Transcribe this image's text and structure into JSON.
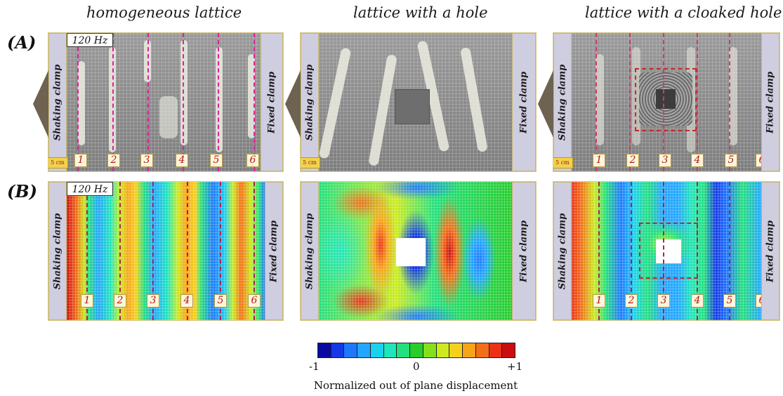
{
  "column_titles": [
    "homogeneous lattice",
    "lattice with a hole",
    "lattice with a cloaked hole"
  ],
  "row_labels": [
    "(A)",
    "(B)"
  ],
  "frequency_label": "120 Hz",
  "scale_label": "5 cm",
  "clamp_labels": {
    "left": "Shaking clamp",
    "right": "Fixed clamp"
  },
  "line_numbers": [
    "1",
    "2",
    "3",
    "4",
    "5",
    "6"
  ],
  "line_colors": {
    "photo_homogeneous": "#e0209c",
    "photo_cloak": "#d23a6c",
    "heatmap": "#b02050"
  },
  "colorbar": {
    "min_label": "-1",
    "mid_label": "0",
    "max_label": "+1",
    "title": "Normalized out of plane displacement",
    "colors": [
      "#0a0aa0",
      "#1438e6",
      "#1e78ff",
      "#22a6ff",
      "#19d2ee",
      "#1ee6bc",
      "#22e07c",
      "#28cc2c",
      "#84e01c",
      "#ccea1e",
      "#f4d21c",
      "#f8a418",
      "#f46e16",
      "#ea3216",
      "#cc0d10"
    ]
  }
}
